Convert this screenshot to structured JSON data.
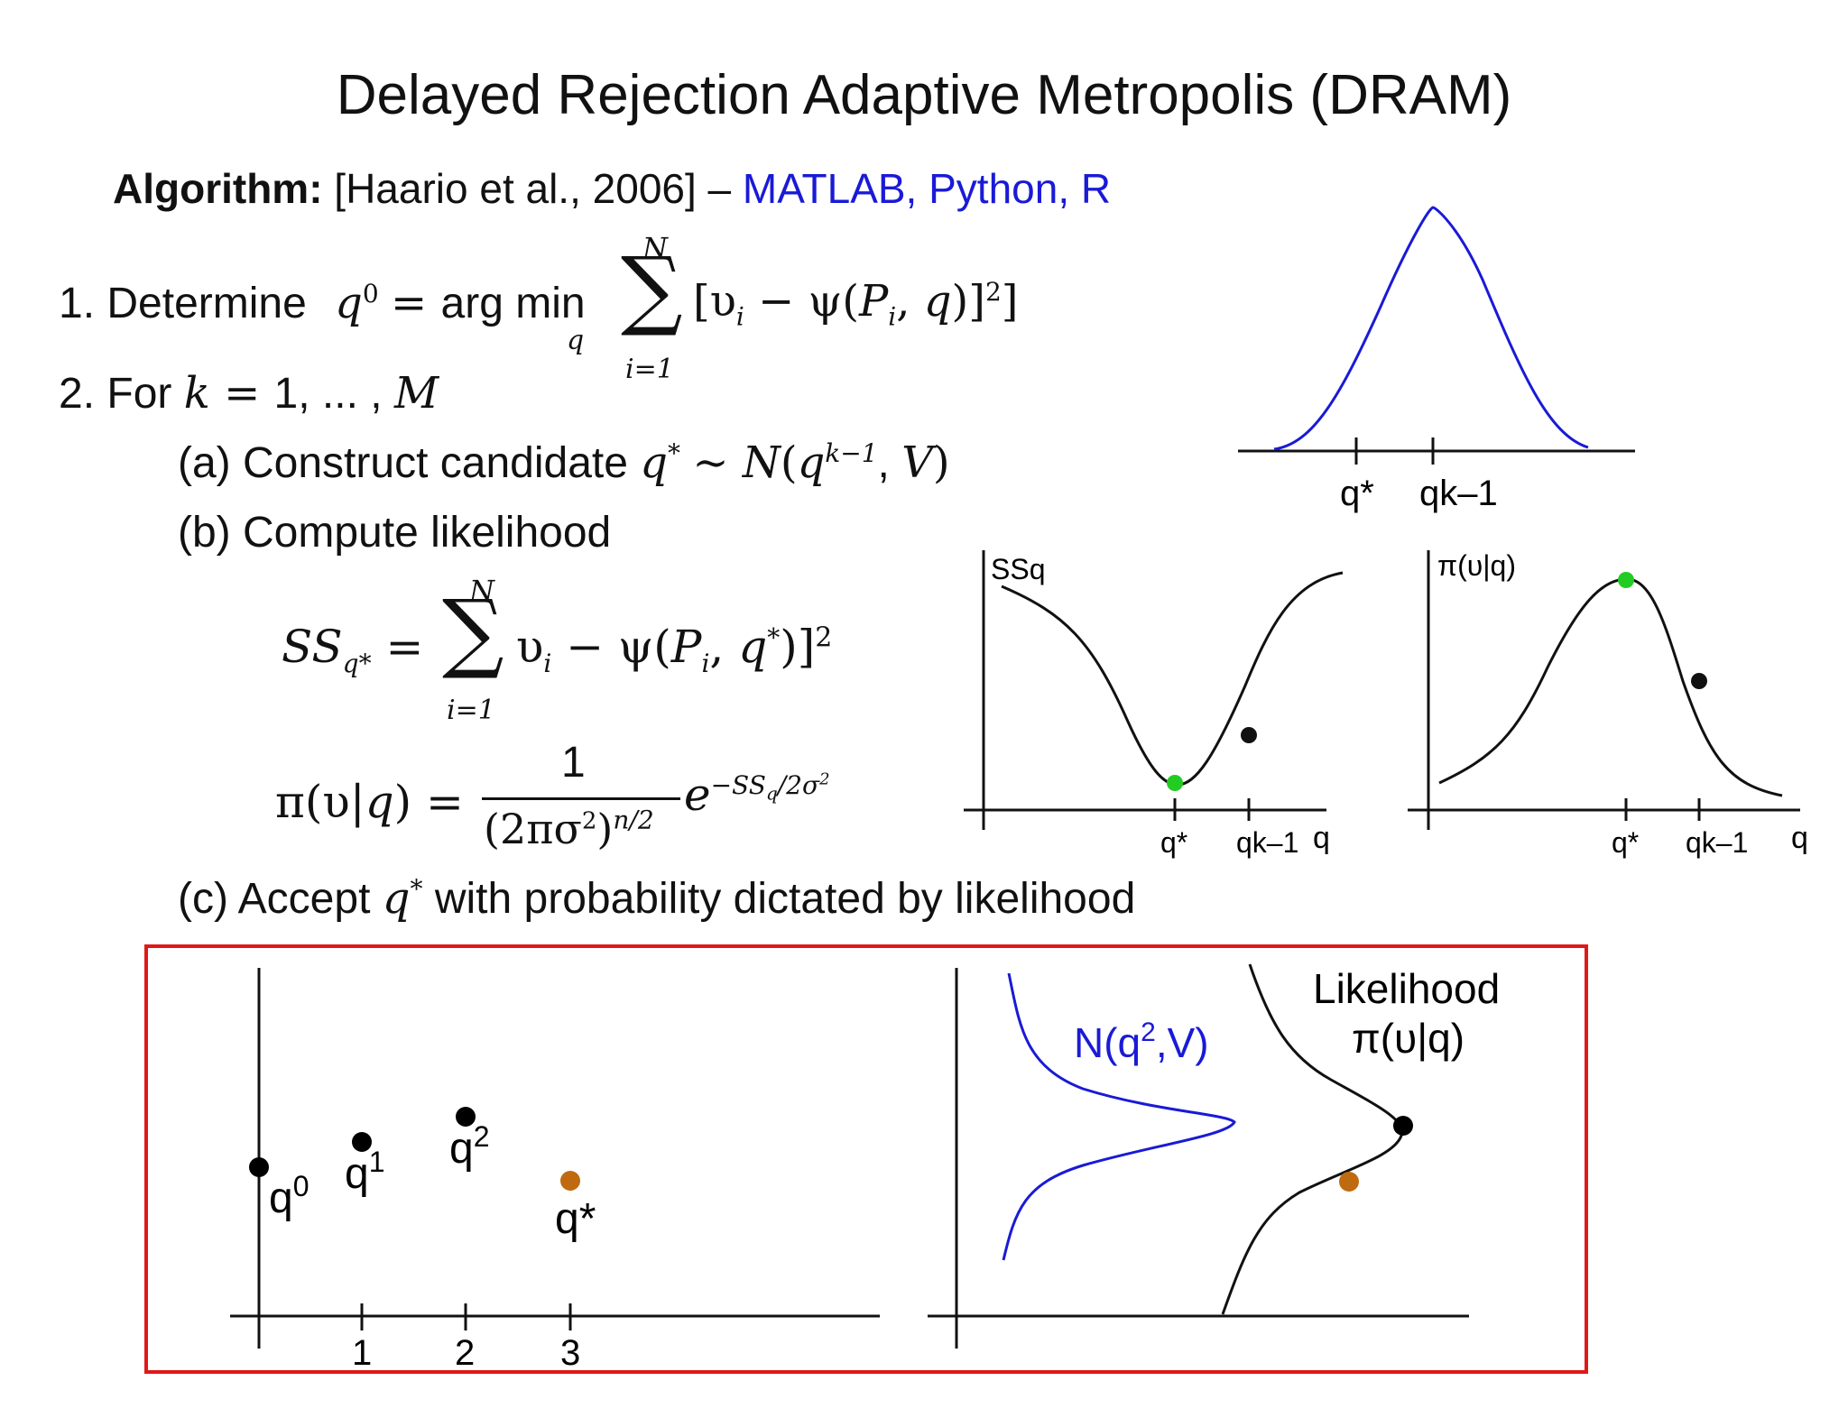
{
  "slide": {
    "title": "Delayed Rejection Adaptive Metropolis (DRAM)",
    "algorithm_label": "Algorithm:",
    "algorithm_ref": "[Haario et al., 2006] –",
    "algorithm_links": "MATLAB, Python, R"
  },
  "steps": {
    "step1_prefix": "1. Determine",
    "step2_prefix": "2. For",
    "step2a_prefix": "(a) Construct candidate",
    "step2b": "(b) Compute likelihood",
    "step2c_prefix": "(c) Accept",
    "step2c_suffix": "with probability dictated by likelihood"
  },
  "equations": {
    "sum_upper": "N",
    "sum_lower": "i=1",
    "fraction_numerator": "1"
  },
  "plots": {
    "proposal": {
      "tick1": "q*",
      "tick2": "qk–1"
    },
    "ss": {
      "ylabel": "SSq",
      "xlabel": "q",
      "tick1": "q*",
      "tick2": "qk–1"
    },
    "likelihood": {
      "ylabel": "π(υ|q)",
      "xlabel": "q",
      "tick1": "q*",
      "tick2": "qk–1"
    }
  },
  "box": {
    "ticks": [
      "1",
      "2",
      "3"
    ],
    "points": [
      {
        "label": "q0",
        "color": "#000000"
      },
      {
        "label": "q1",
        "color": "#000000"
      },
      {
        "label": "q2",
        "color": "#000000"
      },
      {
        "label": "q*",
        "color": "#c06a10"
      }
    ],
    "normal_label": "N(q2,V)",
    "likelihood_label_1": "Likelihood",
    "likelihood_label_2": "π(υ|q)"
  },
  "colors": {
    "link_blue": "#1a1ad6",
    "curve_blue": "#1a1ad6",
    "accept_green": "#22cc22",
    "candidate_orange": "#c06a10",
    "box_red": "#e01818"
  }
}
